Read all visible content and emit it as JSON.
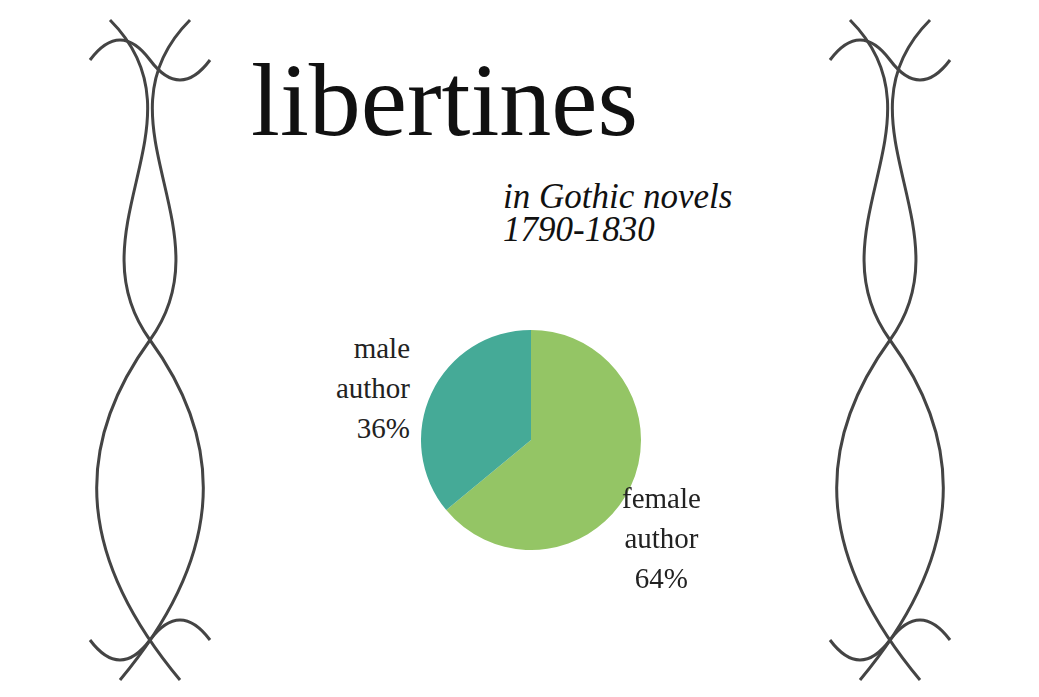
{
  "chart_data": {
    "type": "pie",
    "title": "libertines",
    "subtitle": [
      "in Gothic novels",
      "1790-1830"
    ],
    "categories": [
      "female author",
      "male author"
    ],
    "values": [
      64,
      36
    ],
    "value_labels": [
      "64%",
      "36%"
    ],
    "colors": [
      "#94c565",
      "#45aa97"
    ],
    "data_labels": true
  }
}
